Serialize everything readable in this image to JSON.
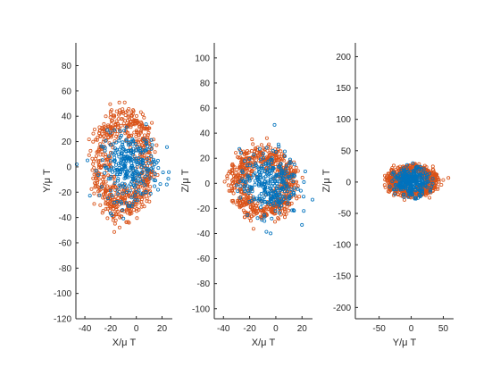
{
  "chart_data": [
    {
      "type": "scatter",
      "xlabel": "X/μ T",
      "ylabel": "Y/μ T",
      "xlim": [
        -47,
        28
      ],
      "ylim": [
        -120,
        98
      ],
      "xticks": [
        -40,
        -20,
        0,
        20
      ],
      "yticks": [
        -120,
        -100,
        -80,
        -60,
        -40,
        -20,
        0,
        20,
        40,
        60,
        80
      ],
      "grid": false,
      "legend": "none",
      "series": [
        {
          "color": "#D95319",
          "center": [
            -10,
            2
          ],
          "spread": [
            14,
            26
          ],
          "count": 620
        },
        {
          "color": "#0072BD",
          "center": [
            -5,
            0
          ],
          "spread": [
            11,
            13
          ],
          "count": 300
        }
      ]
    },
    {
      "type": "scatter",
      "xlabel": "X/μ T",
      "ylabel": "Z/μ T",
      "xlim": [
        -47,
        28
      ],
      "ylim": [
        -108,
        112
      ],
      "xticks": [
        -40,
        -20,
        0,
        20
      ],
      "yticks": [
        -100,
        -80,
        -60,
        -40,
        -20,
        0,
        20,
        40,
        60,
        80,
        100
      ],
      "grid": false,
      "legend": "none",
      "series": [
        {
          "color": "#D95319",
          "center": [
            -10,
            0
          ],
          "spread": [
            15,
            17
          ],
          "count": 620
        },
        {
          "color": "#0072BD",
          "center": [
            -5,
            0
          ],
          "spread": [
            11,
            13
          ],
          "count": 300
        }
      ]
    },
    {
      "type": "scatter",
      "xlabel": "Y/μ T",
      "ylabel": "Z/μ T",
      "xlim": [
        -87,
        66
      ],
      "ylim": [
        -218,
        222
      ],
      "xticks": [
        -50,
        0,
        50
      ],
      "yticks": [
        -200,
        -150,
        -100,
        -50,
        0,
        50,
        100,
        150,
        200
      ],
      "grid": false,
      "legend": "none",
      "series": [
        {
          "color": "#D95319",
          "center": [
            2,
            2
          ],
          "spread": [
            24,
            15
          ],
          "count": 620
        },
        {
          "color": "#0072BD",
          "center": [
            0,
            0
          ],
          "spread": [
            13,
            11
          ],
          "count": 300
        }
      ]
    }
  ]
}
